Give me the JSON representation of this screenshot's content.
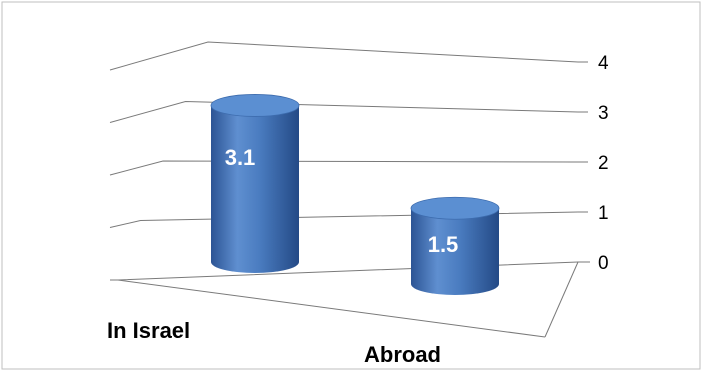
{
  "chart_data": {
    "type": "bar",
    "style": "3d-cylinder",
    "categories": [
      "In Israel",
      "Abroad"
    ],
    "values": [
      3.1,
      1.5
    ],
    "data_labels": [
      "3.1",
      "1.5"
    ],
    "ylim": [
      0,
      4
    ],
    "y_ticks": [
      "0",
      "1",
      "2",
      "3",
      "4"
    ],
    "y_axis_side": "right",
    "grid": true,
    "legend": "none",
    "title": "",
    "xlabel": "",
    "ylabel": "",
    "colors": {
      "bar_main": "#4a7cc0",
      "bar_light": "#7ea6dc",
      "bar_dark": "#2c5494",
      "bar_top": "#5b8fd2",
      "grid_line": "#7a7a7a",
      "frame": "#bfbfbf"
    }
  }
}
